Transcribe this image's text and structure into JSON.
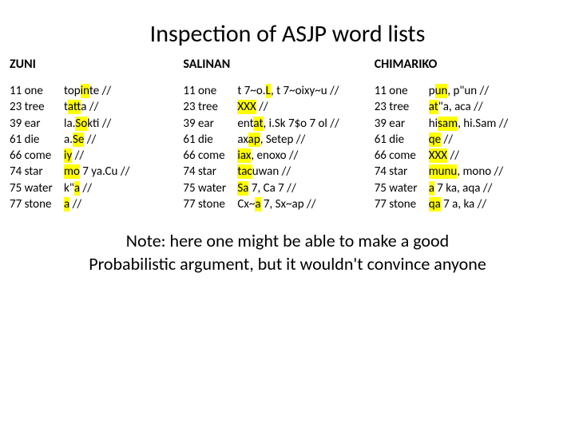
{
  "title": "Inspection of ASJP word lists",
  "note_line1": "Note: here one might be able to make a good",
  "note_line2": "Probabilistic argument, but it wouldn't convince anyone",
  "glosses": [
    "11 one",
    "23 tree",
    "39 ear",
    "61 die",
    "66 come",
    "74 star",
    "75 water",
    "77 stone"
  ],
  "languages": {
    "zuni": {
      "name": "ZUNI",
      "words": [
        {
          "pre": "top",
          "hl": "in",
          "post": "te //"
        },
        {
          "pre": "t",
          "hl": "at",
          "post": "ta //"
        },
        {
          "pre": "la.",
          "hl": "So",
          "post": "kti //"
        },
        {
          "pre": "a.",
          "hl": "Se",
          "post": " //"
        },
        {
          "pre": "",
          "hl": "iy",
          "post": " //"
        },
        {
          "pre": "",
          "hl": "mo",
          "post": " 7 ya.Cu //"
        },
        {
          "pre": "k\"",
          "hl": "a",
          "post": " //"
        },
        {
          "pre": "",
          "hl": "a",
          "post": " //"
        }
      ]
    },
    "salinan": {
      "name": "SALINAN",
      "words": [
        {
          "pre": "t 7~o.",
          "hl": "L",
          "post": ", t 7~oixy~u //"
        },
        {
          "pre": "",
          "hl": "XXX",
          "post": " //"
        },
        {
          "pre": "ent",
          "hl": "at",
          "post": ", i.Sk 7$o 7 ol //"
        },
        {
          "pre": "ax",
          "hl": "ap",
          "post": ", Setep //"
        },
        {
          "pre": "",
          "hl": "iax",
          "post": ", enoxo //"
        },
        {
          "pre": "",
          "hl": "tac",
          "post": "uwan //"
        },
        {
          "pre": "",
          "hl": "Sa",
          "post": " 7, Ca 7 //"
        },
        {
          "pre": "Cx~",
          "hl": "a",
          "post": " 7, Sx~ap //"
        }
      ]
    },
    "chimariko": {
      "name": "CHIMARIKO",
      "words": [
        {
          "pre": "p",
          "hl": "un",
          "post": ", p\"un //"
        },
        {
          "pre": "",
          "hl": "at",
          "post": "\"a, aca //"
        },
        {
          "pre": "hi",
          "hl": "sam",
          "post": ", hi.Sam //"
        },
        {
          "pre": "",
          "hl": "qe",
          "post": " //"
        },
        {
          "pre": "",
          "hl": "XXX",
          "post": " //"
        },
        {
          "pre": "",
          "hl": "munu",
          "post": ", mono //"
        },
        {
          "pre": "",
          "hl": "a",
          "post": " 7 ka, aqa //"
        },
        {
          "pre": "",
          "hl": "qa",
          "post": " 7 a, ka //"
        }
      ]
    }
  },
  "colors": {
    "highlight": "#ffff00",
    "background": "#ffffff",
    "text": "#000000"
  }
}
